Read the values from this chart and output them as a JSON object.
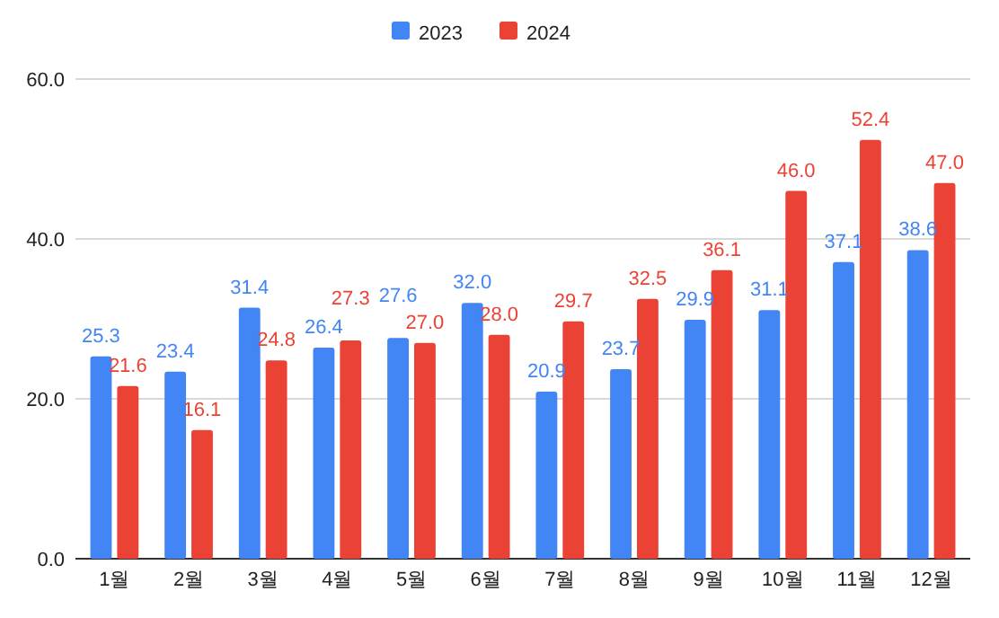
{
  "chart_data": {
    "type": "bar",
    "categories": [
      "1월",
      "2월",
      "3월",
      "4월",
      "5월",
      "6월",
      "7월",
      "8월",
      "9월",
      "10월",
      "11월",
      "12월"
    ],
    "series": [
      {
        "name": "2023",
        "color": "#4285f4",
        "values": [
          25.3,
          23.4,
          31.4,
          26.4,
          27.6,
          32.0,
          20.9,
          23.7,
          29.9,
          31.1,
          37.1,
          38.6
        ],
        "value_labels": [
          "25.3",
          "23.4",
          "31.4",
          "26.4",
          "27.6",
          "32.0",
          "20.9",
          "23.7",
          "29.9",
          "31.1",
          "37.1",
          "38.6"
        ]
      },
      {
        "name": "2024",
        "color": "#ea4335",
        "values": [
          21.6,
          16.1,
          24.8,
          27.3,
          27.0,
          28.0,
          29.7,
          32.5,
          36.1,
          46.0,
          52.4,
          47.0
        ],
        "value_labels": [
          "21.6",
          "16.1",
          "24.8",
          "27.3",
          "27.0",
          "28.0",
          "29.7",
          "32.5",
          "36.1",
          "46.0",
          "52.4",
          "47.0"
        ]
      }
    ],
    "ylim": [
      0,
      60
    ],
    "yticks": [
      {
        "value": 0,
        "label": "0.0"
      },
      {
        "value": 20,
        "label": "20.0"
      },
      {
        "value": 40,
        "label": "40.0"
      },
      {
        "value": 60,
        "label": "60.0"
      }
    ],
    "grid": "y",
    "legend": "top"
  }
}
